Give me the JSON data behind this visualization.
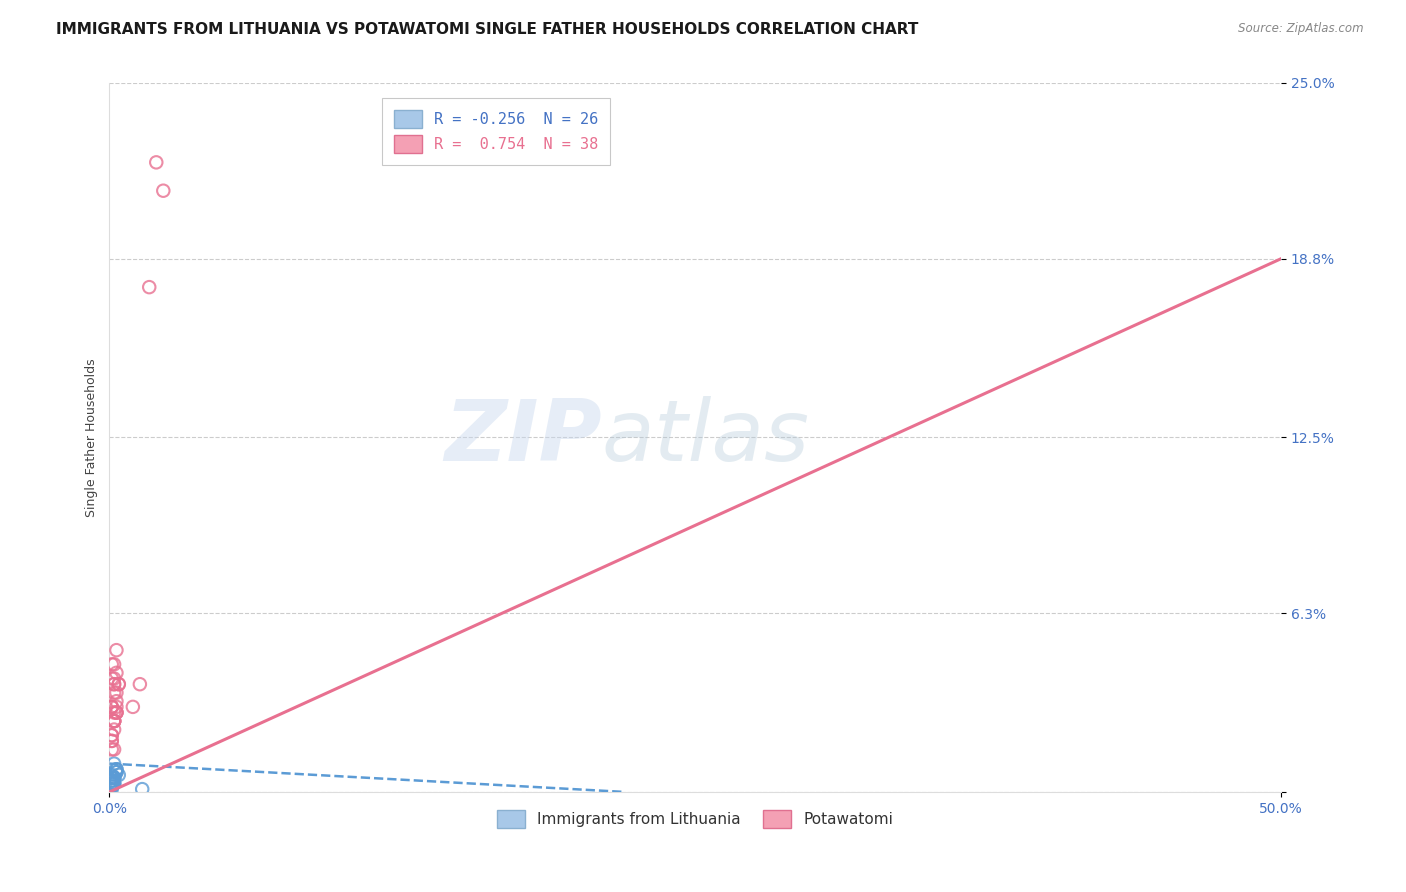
{
  "title": "IMMIGRANTS FROM LITHUANIA VS POTAWATOMI SINGLE FATHER HOUSEHOLDS CORRELATION CHART",
  "source": "Source: ZipAtlas.com",
  "ylabel": "Single Father Households",
  "watermark_zip": "ZIP",
  "watermark_atlas": "atlas",
  "legend": [
    {
      "label": "R = -0.256  N = 26",
      "color": "#a8c8e8"
    },
    {
      "label": "R =  0.754  N = 38",
      "color": "#f4a0b4"
    }
  ],
  "bottom_legend": [
    {
      "label": "Immigrants from Lithuania",
      "color": "#a8c8e8"
    },
    {
      "label": "Potawatomi",
      "color": "#f4a0b4"
    }
  ],
  "xlim": [
    0.0,
    0.5
  ],
  "ylim": [
    0.0,
    0.25
  ],
  "xtick_positions": [
    0.0,
    0.5
  ],
  "xtick_labels": [
    "0.0%",
    "50.0%"
  ],
  "ytick_positions": [
    0.0,
    0.063,
    0.125,
    0.188,
    0.25
  ],
  "ytick_labels": [
    "",
    "6.3%",
    "12.5%",
    "18.8%",
    "25.0%"
  ],
  "grid_color": "#cccccc",
  "background_color": "#ffffff",
  "blue_scatter_x": [
    0.001,
    0.002,
    0.001,
    0.003,
    0.002,
    0.001,
    0.004,
    0.002,
    0.001,
    0.003,
    0.002,
    0.001,
    0.003,
    0.002,
    0.001,
    0.002,
    0.001,
    0.003,
    0.002,
    0.002,
    0.001,
    0.014,
    0.002,
    0.001,
    0.001,
    0.002
  ],
  "blue_scatter_y": [
    0.005,
    0.01,
    0.003,
    0.008,
    0.005,
    0.004,
    0.006,
    0.003,
    0.001,
    0.007,
    0.005,
    0.004,
    0.008,
    0.005,
    0.005,
    0.003,
    0.003,
    0.007,
    0.005,
    0.004,
    0.006,
    0.001,
    0.005,
    0.002,
    0.002,
    0.003
  ],
  "pink_scatter_x": [
    0.001,
    0.002,
    0.003,
    0.003,
    0.002,
    0.003,
    0.001,
    0.002,
    0.002,
    0.001,
    0.002,
    0.003,
    0.004,
    0.001,
    0.002,
    0.002,
    0.003,
    0.001,
    0.002,
    0.002,
    0.001,
    0.003,
    0.004,
    0.002,
    0.001,
    0.003,
    0.003,
    0.002,
    0.001,
    0.002,
    0.001,
    0.01,
    0.002,
    0.001,
    0.013,
    0.023,
    0.017,
    0.02
  ],
  "pink_scatter_y": [
    0.03,
    0.04,
    0.028,
    0.042,
    0.025,
    0.035,
    0.03,
    0.038,
    0.025,
    0.02,
    0.025,
    0.032,
    0.038,
    0.045,
    0.038,
    0.028,
    0.028,
    0.04,
    0.045,
    0.035,
    0.03,
    0.05,
    0.038,
    0.022,
    0.018,
    0.028,
    0.03,
    0.025,
    0.018,
    0.015,
    0.015,
    0.03,
    0.025,
    0.02,
    0.038,
    0.212,
    0.178,
    0.222
  ],
  "blue_line_x": [
    0.0,
    0.22
  ],
  "blue_line_y": [
    0.01,
    0.0
  ],
  "pink_line_x": [
    0.0,
    0.5
  ],
  "pink_line_y": [
    0.0,
    0.188
  ],
  "scatter_size": 80,
  "title_fontsize": 11,
  "axis_label_fontsize": 9,
  "tick_fontsize": 10,
  "legend_fontsize": 11
}
